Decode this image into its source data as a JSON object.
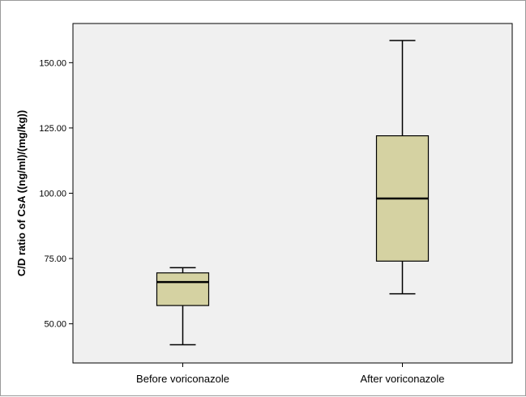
{
  "chart_data": {
    "type": "boxplot",
    "title": "",
    "xlabel": "",
    "ylabel": "C/D ratio of CsA ((ng/ml)/(mg/kg))",
    "ylim": [
      35,
      165
    ],
    "yticks": [
      50,
      75,
      100,
      125,
      150
    ],
    "ytick_labels": [
      "50.00",
      "75.00",
      "100.00",
      "125.00",
      "150.00"
    ],
    "grid": false,
    "categories": [
      "Before voriconazole",
      "After voriconazole"
    ],
    "boxes": [
      {
        "category": "Before voriconazole",
        "min": 42.0,
        "q1": 57.0,
        "median": 66.0,
        "q3": 69.5,
        "max": 71.5
      },
      {
        "category": "After voriconazole",
        "min": 61.5,
        "q1": 74.0,
        "median": 98.0,
        "q3": 122.0,
        "max": 158.5
      }
    ],
    "colors": {
      "box_fill": "#d5d2a2",
      "plot_background": "#f0f0f0",
      "lines": "#000000"
    }
  }
}
